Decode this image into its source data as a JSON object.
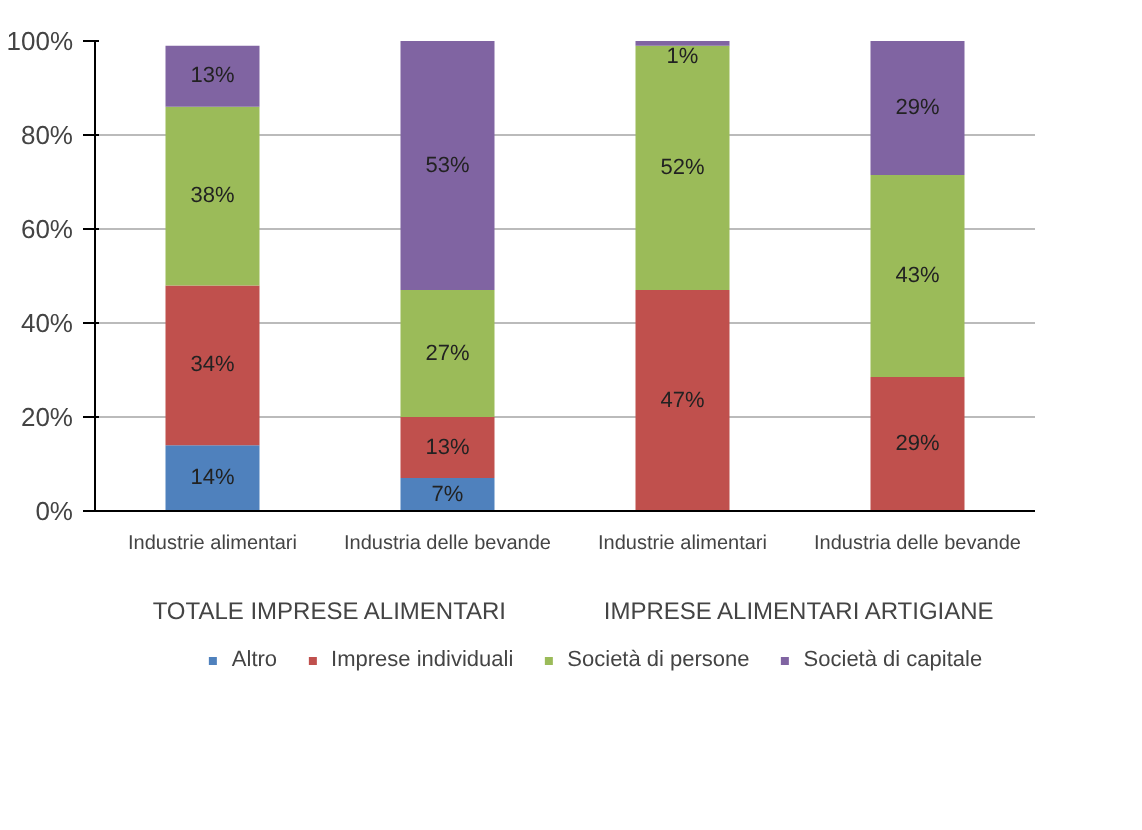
{
  "chart_data": {
    "type": "bar",
    "stacked": true,
    "categories": [
      "Industrie alimentari",
      "Industria delle bevande",
      "Industrie alimentari",
      "Industria delle bevande"
    ],
    "series": [
      {
        "name": "Altro",
        "color": "#4f81bd",
        "values": [
          14,
          7,
          null,
          null
        ],
        "value_labels": [
          "14%",
          "7%",
          null,
          null
        ]
      },
      {
        "name": "Imprese individuali",
        "color": "#c0504d",
        "values": [
          34,
          13,
          47,
          28.5
        ],
        "value_labels": [
          "34%",
          "13%",
          "47%",
          "29%"
        ]
      },
      {
        "name": "Società di persone",
        "color": "#9bbb59",
        "values": [
          38,
          27,
          52,
          43
        ],
        "value_labels": [
          "38%",
          "27%",
          "52%",
          "43%"
        ]
      },
      {
        "name": "Società di capitale",
        "color": "#8064a2",
        "values": [
          13,
          53,
          1,
          28.5
        ],
        "value_labels": [
          "13%",
          "53%",
          "1%",
          "29%"
        ]
      }
    ],
    "ylim": [
      0,
      100
    ],
    "yticks": [
      {
        "value": 0,
        "label": "0%"
      },
      {
        "value": 20,
        "label": "20%"
      },
      {
        "value": 40,
        "label": "40%"
      },
      {
        "value": 60,
        "label": "60%"
      },
      {
        "value": 80,
        "label": "80%"
      },
      {
        "value": 100,
        "label": "100%"
      }
    ],
    "grid": "y",
    "legend": "bottom",
    "annotations": [
      "TOTALE IMPRESE ALIMENTARI",
      "IMPRESE ALIMENTARI ARTIGIANE"
    ]
  }
}
